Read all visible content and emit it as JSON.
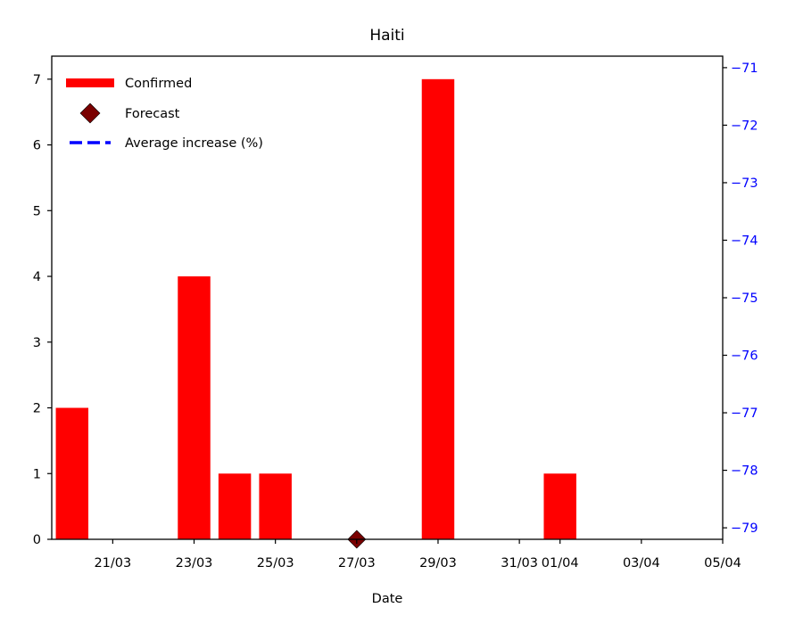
{
  "chart_data": {
    "type": "bar",
    "title": "Haiti",
    "xlabel": "Date",
    "ylabel": "",
    "ylim": [
      0,
      7.35
    ],
    "y2lim": [
      -79.2,
      -70.8
    ],
    "x_tick_labels": [
      "21/03",
      "23/03",
      "25/03",
      "27/03",
      "29/03",
      "31/03",
      "01/04",
      "03/04",
      "05/04"
    ],
    "y_ticks": [
      0,
      1,
      2,
      3,
      4,
      5,
      6,
      7
    ],
    "y2_ticks": [
      -79,
      -78,
      -77,
      -76,
      -75,
      -74,
      -73,
      -72,
      -71
    ],
    "legend_position": "upper left",
    "series": [
      {
        "name": "Confirmed",
        "kind": "bar",
        "color": "#ff0000",
        "x": [
          "20/03",
          "21/03",
          "22/03",
          "23/03",
          "24/03",
          "25/03",
          "26/03",
          "27/03",
          "28/03",
          "29/03",
          "30/03",
          "31/03",
          "01/04"
        ],
        "values": [
          2,
          0,
          0,
          4,
          1,
          1,
          0,
          0,
          0,
          7,
          0,
          0,
          1
        ]
      },
      {
        "name": "Forecast",
        "kind": "marker",
        "color": "#7a0000",
        "x": [
          "27/03"
        ],
        "values": [
          0
        ]
      },
      {
        "name": "Average increase (%)",
        "kind": "dashed-line",
        "axis": "right",
        "color": "#0000ff",
        "x": [],
        "values": []
      }
    ],
    "colors": {
      "right_axis": "#0000ff",
      "axes": "#000000"
    }
  }
}
